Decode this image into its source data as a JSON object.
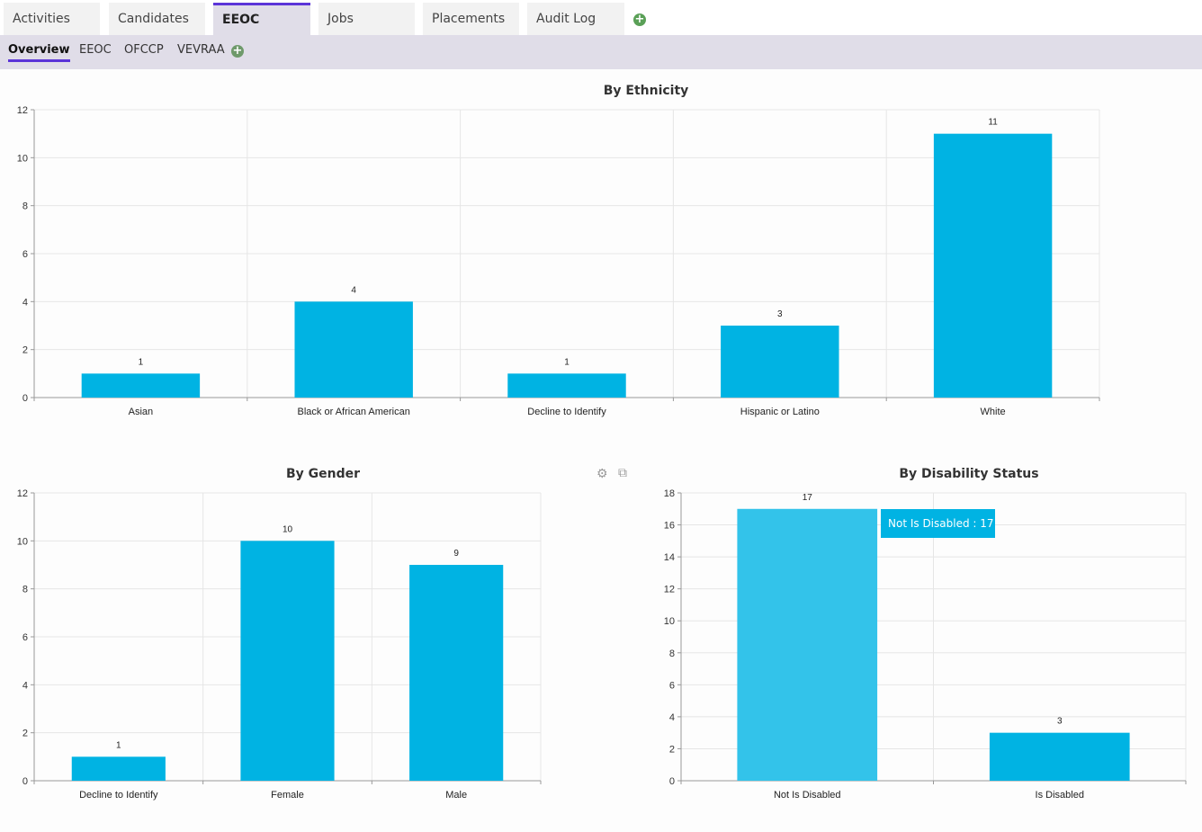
{
  "top_tabs": [
    {
      "label": "Activities"
    },
    {
      "label": "Candidates"
    },
    {
      "label": "EEOC"
    },
    {
      "label": "Jobs"
    },
    {
      "label": "Placements"
    },
    {
      "label": "Audit Log"
    }
  ],
  "sub_tabs": [
    {
      "label": "Overview"
    },
    {
      "label": "EEOC"
    },
    {
      "label": "OFCCP"
    },
    {
      "label": "VEVRAA"
    }
  ],
  "colors": {
    "accent": "#5b34d8",
    "bar": "#00b3e3",
    "bar_hover": "#33c3ea",
    "add": "#5aa057",
    "add_sub": "#6f9a6b"
  },
  "icons": {
    "add": "plus-circle-icon",
    "settings": "gears-icon",
    "popout": "external-link-icon"
  },
  "tooltip": {
    "text": "Not Is Disabled : 17"
  },
  "chart_data": [
    {
      "type": "bar",
      "title": "By Ethnicity",
      "categories": [
        "Asian",
        "Black or African American",
        "Decline to Identify",
        "Hispanic or Latino",
        "White"
      ],
      "values": [
        1,
        4,
        1,
        3,
        11
      ],
      "ylim": [
        0,
        12
      ],
      "yticks": [
        0,
        2,
        4,
        6,
        8,
        10,
        12
      ],
      "grid": true
    },
    {
      "type": "bar",
      "title": "By Gender",
      "categories": [
        "Decline to Identify",
        "Female",
        "Male"
      ],
      "values": [
        1,
        10,
        9
      ],
      "ylim": [
        0,
        12
      ],
      "yticks": [
        0,
        2,
        4,
        6,
        8,
        10,
        12
      ],
      "grid": true
    },
    {
      "type": "bar",
      "title": "By Disability Status",
      "categories": [
        "Not Is Disabled",
        "Is Disabled"
      ],
      "values": [
        17,
        3
      ],
      "ylim": [
        0,
        18
      ],
      "yticks": [
        0,
        2,
        4,
        6,
        8,
        10,
        12,
        14,
        16,
        18
      ],
      "grid": true
    }
  ]
}
